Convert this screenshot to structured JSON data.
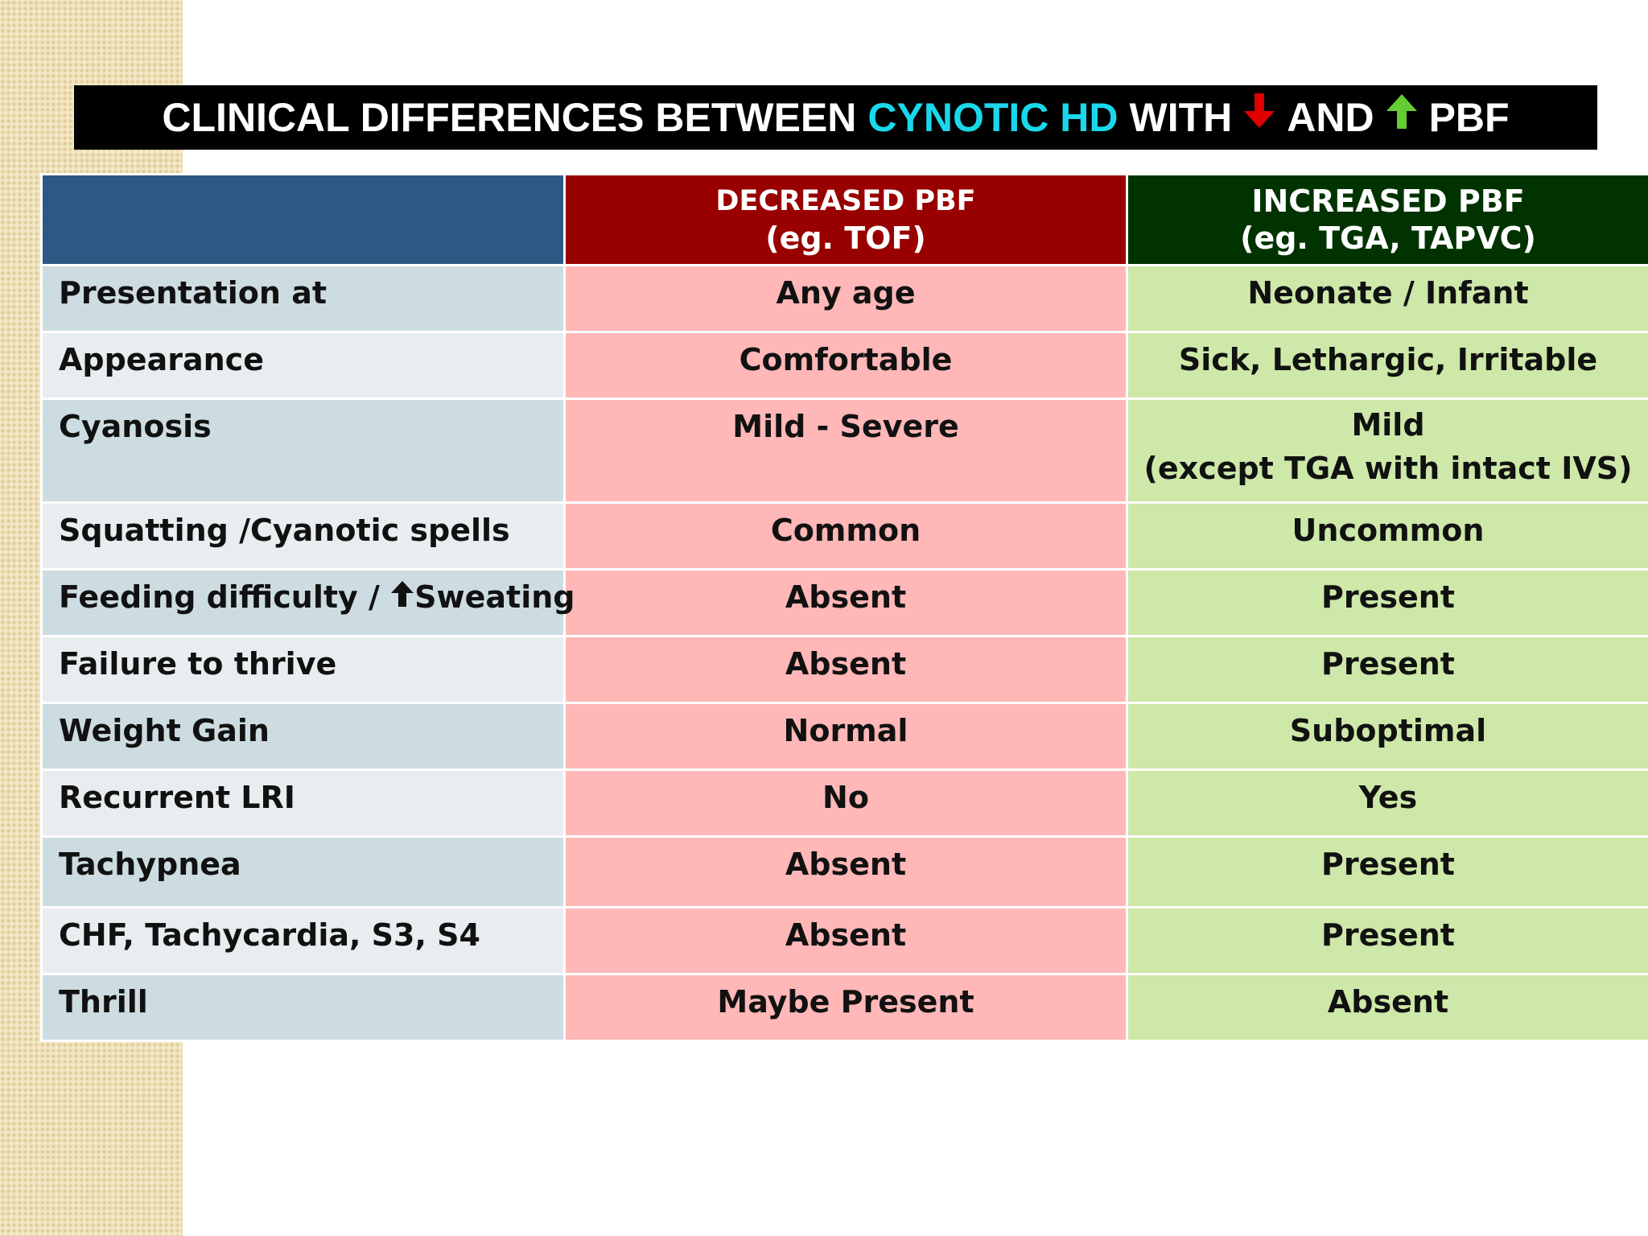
{
  "title": {
    "part1": "CLINICAL DIFFERENCES BETWEEN",
    "accent": "CYNOTIC HD",
    "part2": "WITH",
    "part3": "AND",
    "part4": "PBF",
    "down_arrow_icon": "down-arrow-icon",
    "up_arrow_icon": "up-arrow-icon",
    "colors": {
      "accent": "#1ad8ec",
      "down_arrow": "#e00000",
      "up_arrow": "#66cc33"
    }
  },
  "table": {
    "columns": [
      {
        "line1": "",
        "line2": ""
      },
      {
        "line1": "DECREASED PBF",
        "line2": "(eg. TOF)"
      },
      {
        "line1": "INCREASED PBF",
        "line2": "(eg. TGA, TAPVC)"
      }
    ],
    "rows": [
      {
        "label": "Presentation at",
        "decreased": "Any age",
        "increased": "Neonate / Infant"
      },
      {
        "label": "Appearance",
        "decreased": "Comfortable",
        "increased": "Sick, Lethargic, Irritable"
      },
      {
        "label": "Cyanosis",
        "decreased": "Mild - Severe",
        "increased": "Mild",
        "increased_line2": "(except TGA with intact IVS)"
      },
      {
        "label": "Squatting /Cyanotic spells",
        "decreased": "Common",
        "increased": "Uncommon"
      },
      {
        "label_part1": "Feeding difficulty /",
        "label_part2": "Sweating",
        "label_icon": "up-arrow-icon",
        "decreased": "Absent",
        "increased": "Present"
      },
      {
        "label": "Failure to thrive",
        "decreased": "Absent",
        "increased": "Present"
      },
      {
        "label": "Weight Gain",
        "decreased": "Normal",
        "increased": "Suboptimal"
      },
      {
        "label": "Recurrent LRI",
        "decreased": "No",
        "increased": "Yes"
      },
      {
        "label": "Tachypnea",
        "decreased": "Absent",
        "increased": "Present"
      },
      {
        "label": "CHF, Tachycardia, S3, S4",
        "decreased": "Absent",
        "increased": "Present"
      },
      {
        "label": "Thrill",
        "decreased": "Maybe Present",
        "increased": "Absent"
      }
    ],
    "colors": {
      "corner_header": "#2f5783",
      "decreased_header": "#990000",
      "increased_header": "#003300",
      "decreased_cell": "#ffb7b7",
      "increased_cell": "#cde8a8",
      "label_dark": "#cddce1",
      "label_light": "#e8eef0"
    }
  }
}
